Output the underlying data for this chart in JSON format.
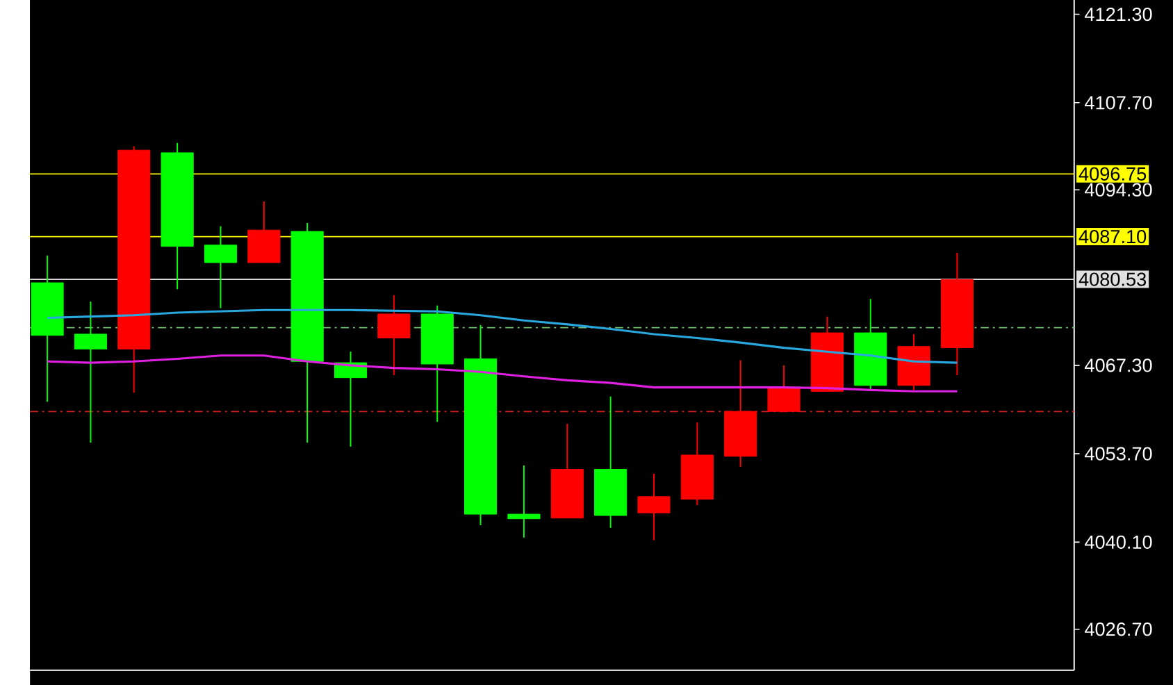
{
  "chart_data": {
    "type": "candlestick",
    "categories": [
      null,
      null,
      null,
      null,
      null,
      null,
      null,
      null,
      null,
      null,
      null,
      null,
      null,
      null,
      null,
      null,
      null,
      null,
      null,
      null,
      null,
      null
    ],
    "ylim": [
      4020.4,
      4123.5
    ],
    "yticks": [
      {
        "value": 4026.7,
        "label": "4026.70"
      },
      {
        "value": 4040.1,
        "label": "4040.10"
      },
      {
        "value": 4053.7,
        "label": "4053.70"
      },
      {
        "value": 4067.3,
        "label": "4067.30"
      },
      {
        "value": 4094.3,
        "label": "4094.30"
      },
      {
        "value": 4107.7,
        "label": "4107.70"
      },
      {
        "value": 4121.3,
        "label": "4121.30"
      }
    ],
    "tick_labels": "y",
    "ref_lines": [
      {
        "axis": "y",
        "value": 4096.75,
        "label": "4096.75",
        "color": "#ffff00"
      },
      {
        "axis": "y",
        "value": 4087.1,
        "label": "4087.10",
        "color": "#ffff00"
      },
      {
        "axis": "y",
        "value": 4080.53,
        "label": "4080.53",
        "color": "#e0e0e0"
      },
      {
        "axis": "y",
        "value": 4073.1,
        "color": "#70c070",
        "line_style": "dashed"
      },
      {
        "axis": "y",
        "value": 4060.2,
        "color": "#d02020",
        "line_style": "dashed"
      }
    ],
    "series": [
      {
        "type": "line",
        "color": "#29a8e0",
        "values": [
          4074.6,
          4074.8,
          4075.0,
          4075.4,
          4075.6,
          4075.8,
          4075.8,
          4075.8,
          4075.7,
          4075.6,
          4075.0,
          4074.2,
          4073.6,
          4072.9,
          4072.1,
          4071.5,
          4070.8,
          4070.0,
          4069.4,
          4068.8,
          4067.9,
          4067.7
        ]
      },
      {
        "type": "line",
        "color": "#e020e0",
        "values": [
          4067.9,
          4067.7,
          4067.9,
          4068.3,
          4068.8,
          4068.8,
          4067.9,
          4067.3,
          4066.9,
          4066.7,
          4066.3,
          4065.6,
          4065.0,
          4064.6,
          4063.9,
          4063.9,
          4063.9,
          4063.9,
          4063.8,
          4063.5,
          4063.3,
          4063.3
        ]
      },
      {
        "type": "candlestick",
        "ohlc": [
          [
            4080.0,
            4084.2,
            4061.7,
            4071.9
          ],
          [
            4072.1,
            4077.1,
            4055.4,
            4069.8
          ],
          [
            4069.8,
            4101.0,
            4063.1,
            4100.4
          ],
          [
            4100.0,
            4101.5,
            4079.0,
            4085.6
          ],
          [
            4085.8,
            4088.7,
            4076.1,
            4083.1
          ],
          [
            4083.1,
            4092.5,
            4083.1,
            4088.1
          ],
          [
            4087.9,
            4089.2,
            4055.4,
            4067.9
          ],
          [
            4067.7,
            4069.4,
            4054.8,
            4065.4
          ],
          [
            4071.5,
            4078.1,
            4065.8,
            4075.2
          ],
          [
            4075.2,
            4076.5,
            4058.6,
            4067.5
          ],
          [
            4068.3,
            4073.5,
            4042.7,
            4044.4
          ],
          [
            4044.4,
            4051.9,
            4040.8,
            4043.7
          ],
          [
            4043.8,
            4058.3,
            4043.8,
            4051.3
          ],
          [
            4051.3,
            4062.5,
            4042.3,
            4044.2
          ],
          [
            4044.6,
            4050.6,
            4040.4,
            4047.1
          ],
          [
            4046.7,
            4058.5,
            4045.8,
            4053.5
          ],
          [
            4053.3,
            4068.1,
            4051.7,
            4060.2
          ],
          [
            4060.2,
            4067.3,
            4060.2,
            4063.8
          ],
          [
            4063.3,
            4074.8,
            4063.3,
            4072.3
          ],
          [
            4072.3,
            4077.5,
            4063.5,
            4064.2
          ],
          [
            4064.2,
            4072.1,
            4063.5,
            4070.2
          ],
          [
            4070.0,
            4084.6,
            4065.8,
            4080.5
          ]
        ],
        "colors": [
          "#00ff00",
          "#00ff00",
          "#ff0000",
          "#00ff00",
          "#00ff00",
          "#ff0000",
          "#00ff00",
          "#00ff00",
          "#ff0000",
          "#00ff00",
          "#00ff00",
          "#00ff00",
          "#ff0000",
          "#00ff00",
          "#ff0000",
          "#ff0000",
          "#ff0000",
          "#ff0000",
          "#ff0000",
          "#00ff00",
          "#ff0000",
          "#ff0000"
        ]
      }
    ]
  }
}
